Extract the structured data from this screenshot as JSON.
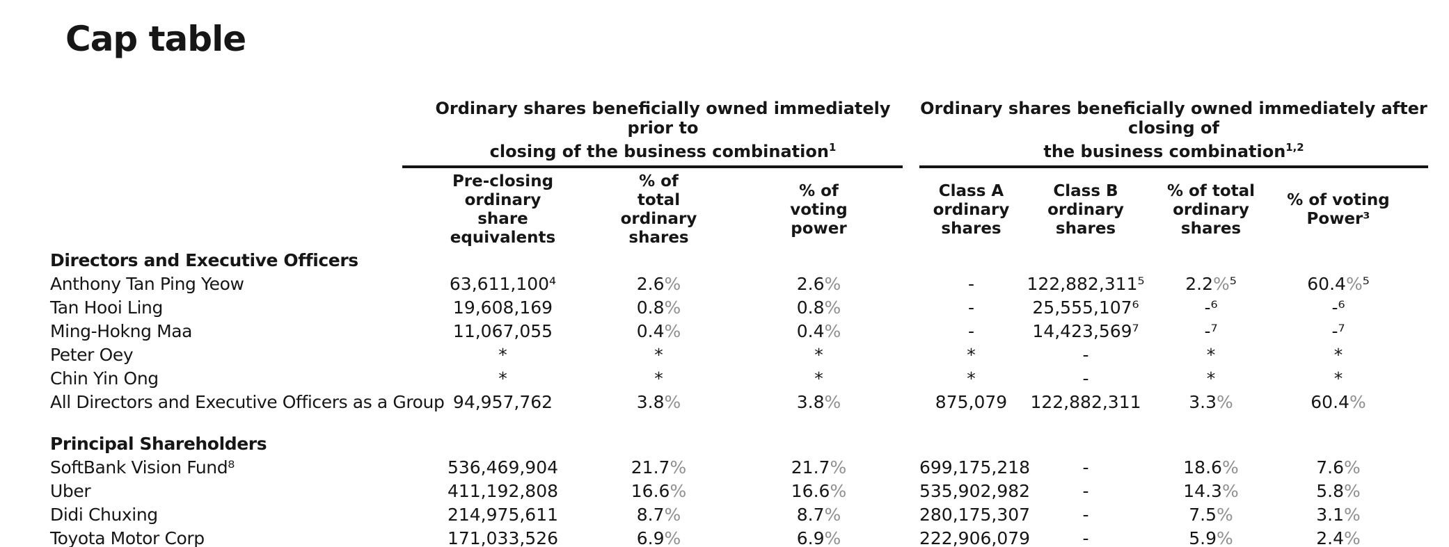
{
  "page": {
    "title": "Cap table"
  },
  "colors": {
    "text": "#161616",
    "percent_sign": "#8f8f8f",
    "rule": "#141414",
    "background": "#ffffff"
  },
  "table": {
    "groups": [
      {
        "line1": "Ordinary shares beneficially owned immediately prior to",
        "line2": "closing of the business combination",
        "sup": "1"
      },
      {
        "line1": "Ordinary shares beneficially owned immediately after closing of",
        "line2": "the business combination",
        "sup": "1,2"
      }
    ],
    "columns": [
      {
        "label": "Pre-closing\nordinary\nshare\nequivalents"
      },
      {
        "label": "% of\ntotal\nordinary\nshares"
      },
      {
        "label": "% of\nvoting\npower"
      },
      {
        "label": "Class A\nordinary\nshares"
      },
      {
        "label": "Class B\nordinary\nshares"
      },
      {
        "label": "% of total\nordinary\nshares"
      },
      {
        "label": "% of voting\nPower³"
      }
    ],
    "rows": [
      {
        "type": "section",
        "label": "Directors and Executive Officers"
      },
      {
        "type": "data",
        "name": "Anthony Tan Ping Yeow",
        "cells": [
          "63,611,100⁴",
          "2.6%",
          "2.6%",
          "-",
          "122,882,311⁵",
          "2.2%⁵",
          "60.4%⁵"
        ]
      },
      {
        "type": "data",
        "name": "Tan Hooi Ling",
        "cells": [
          "19,608,169",
          "0.8%",
          "0.8%",
          "-",
          "25,555,107⁶",
          "-⁶",
          "-⁶"
        ]
      },
      {
        "type": "data",
        "name": "Ming-Hokng Maa",
        "cells": [
          "11,067,055",
          "0.4%",
          "0.4%",
          "-",
          "14,423,569⁷",
          "-⁷",
          "-⁷"
        ]
      },
      {
        "type": "data",
        "name": "Peter Oey",
        "cells": [
          "*",
          "*",
          "*",
          "*",
          "-",
          "*",
          "*"
        ]
      },
      {
        "type": "data",
        "name": "Chin Yin Ong",
        "cells": [
          "*",
          "*",
          "*",
          "*",
          "-",
          "*",
          "*"
        ]
      },
      {
        "type": "data",
        "name": "All Directors and Executive Officers as a Group",
        "cells": [
          "94,957,762",
          "3.8%",
          "3.8%",
          "875,079",
          "122,882,311",
          "3.3%",
          "60.4%"
        ]
      },
      {
        "type": "section",
        "label": "Principal Shareholders"
      },
      {
        "type": "data",
        "name": "SoftBank Vision Fund⁸",
        "cells": [
          "536,469,904",
          "21.7%",
          "21.7%",
          "699,175,218",
          "-",
          "18.6%",
          "7.6%"
        ]
      },
      {
        "type": "data",
        "name": "Uber",
        "cells": [
          "411,192,808",
          "16.6%",
          "16.6%",
          "535,902,982",
          "-",
          "14.3%",
          "5.8%"
        ]
      },
      {
        "type": "data",
        "name": "Didi Chuxing",
        "cells": [
          "214,975,611",
          "8.7%",
          "8.7%",
          "280,175,307",
          "-",
          "7.5%",
          "3.1%"
        ]
      },
      {
        "type": "data",
        "name": "Toyota Motor Corp",
        "cells": [
          "171,033,526",
          "6.9%",
          "6.9%",
          "222,906,079",
          "-",
          "5.9%",
          "2.4%"
        ]
      }
    ]
  }
}
